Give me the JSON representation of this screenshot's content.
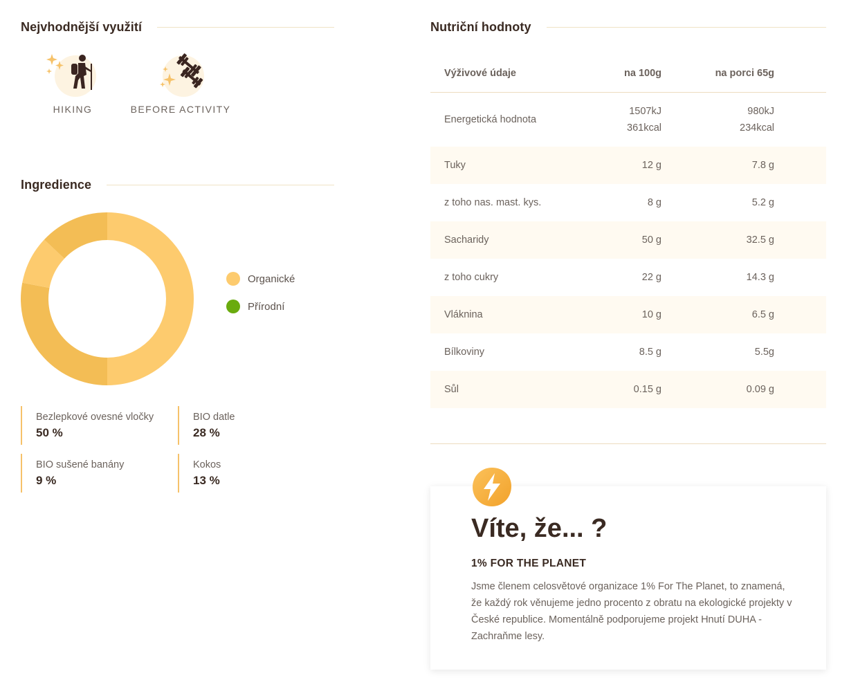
{
  "usage": {
    "title": "Nejvhodnější využití",
    "items": [
      {
        "label": "HIKING",
        "icon": "hiking-icon"
      },
      {
        "label": "BEFORE ACTIVITY",
        "icon": "dumbbell-icon"
      }
    ]
  },
  "ingredients": {
    "title": "Ingredience",
    "legend": [
      {
        "label": "Organické",
        "color": "#fdcb6e"
      },
      {
        "label": "Přírodní",
        "color": "#6aab0e"
      }
    ],
    "items": [
      {
        "name": "Bezlepkové ovesné vločky",
        "value": "50 %"
      },
      {
        "name": "BIO datle",
        "value": "28 %"
      },
      {
        "name": "BIO sušené banány",
        "value": "9 %"
      },
      {
        "name": "Kokos",
        "value": "13 %"
      }
    ]
  },
  "chart_data": {
    "type": "pie",
    "categories": [
      "Bezlepkové ovesné vločky",
      "BIO datle",
      "BIO sušené banány",
      "Kokos"
    ],
    "values": [
      50,
      28,
      9,
      13
    ],
    "colors": [
      "#fdcb6e",
      "#f3bd55",
      "#fdcb6e",
      "#f3bd55"
    ],
    "title": ""
  },
  "nutrition": {
    "title": "Nutriční hodnoty",
    "headers": [
      "Výživové údaje",
      "na 100g",
      "na porci 65g"
    ],
    "rows": [
      {
        "name": "Energetická hodnota",
        "per100": [
          "1507kJ",
          "361kcal"
        ],
        "portion": [
          "980kJ",
          "234kcal"
        ]
      },
      {
        "name": "Tuky",
        "per100": [
          "12 g"
        ],
        "portion": [
          "7.8 g"
        ]
      },
      {
        "name": "z toho nas. mast. kys.",
        "per100": [
          "8 g"
        ],
        "portion": [
          "5.2 g"
        ]
      },
      {
        "name": "Sacharidy",
        "per100": [
          "50 g"
        ],
        "portion": [
          "32.5 g"
        ]
      },
      {
        "name": "z toho cukry",
        "per100": [
          "22 g"
        ],
        "portion": [
          "14.3 g"
        ]
      },
      {
        "name": "Vláknina",
        "per100": [
          "10 g"
        ],
        "portion": [
          "6.5 g"
        ]
      },
      {
        "name": "Bílkoviny",
        "per100": [
          "8.5 g"
        ],
        "portion": [
          "5.5g"
        ]
      },
      {
        "name": "Sůl",
        "per100": [
          "0.15 g"
        ],
        "portion": [
          "0.09 g"
        ]
      }
    ]
  },
  "card": {
    "title": "Víte, že... ?",
    "subtitle": "1% FOR THE PLANET",
    "text": "Jsme členem celosvětové organizace 1% For The Planet, to znamená, že každý rok věnujeme jedno procento z obratu na ekologické projekty v České republice. Momentálně podporujeme projekt Hnutí DUHA - Zachraňme lesy.",
    "icon": "lightning-icon"
  }
}
